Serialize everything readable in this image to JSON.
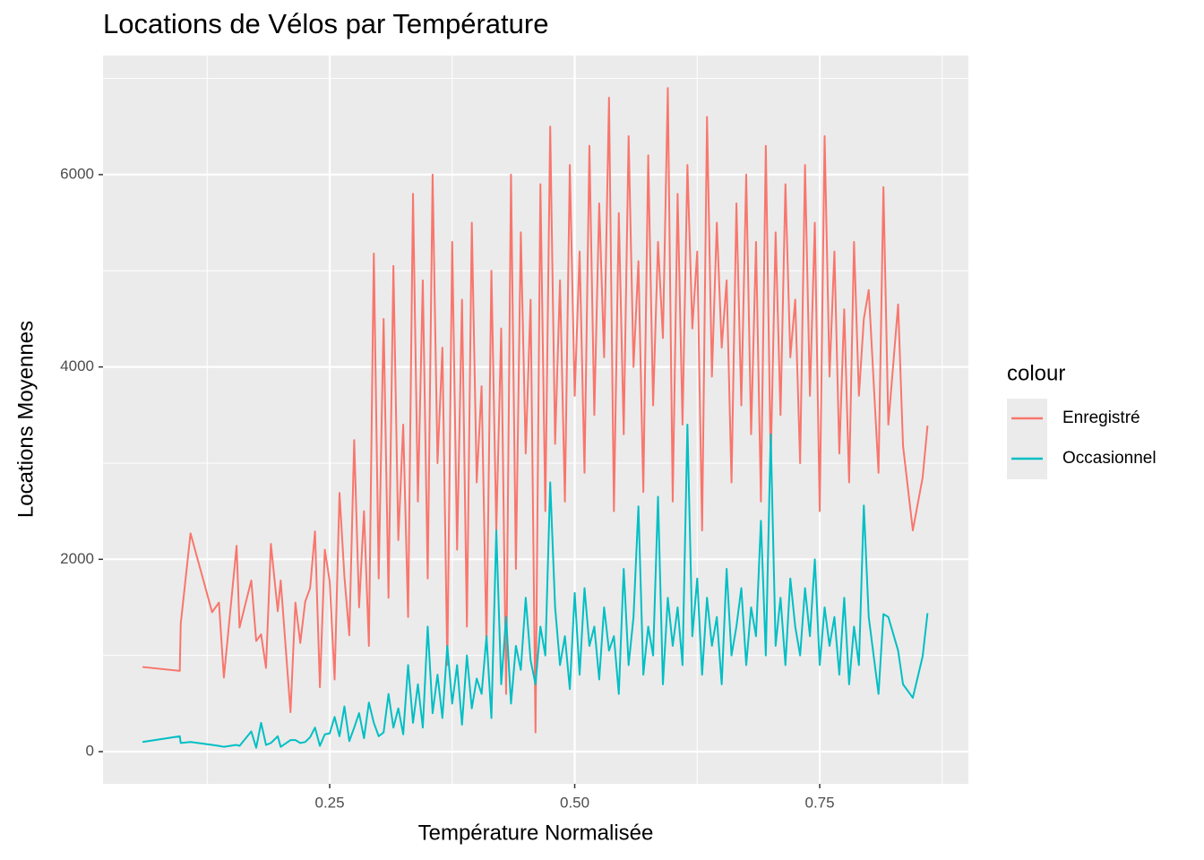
{
  "chart_data": {
    "type": "line",
    "title": "Locations de Vélos par Température",
    "x_label": "Température Normalisée",
    "y_label": "Locations Moyennes",
    "legend_title": "colour",
    "legend_position": "right",
    "grid": true,
    "xlim": [
      0.0187,
      0.9017
    ],
    "xticks": [
      {
        "value": 0.25,
        "label": "0.25"
      },
      {
        "value": 0.5,
        "label": "0.50"
      },
      {
        "value": 0.75,
        "label": "0.75"
      }
    ],
    "ylim": [
      -335,
      7238
    ],
    "yticks": [
      0,
      2000,
      4000,
      6000
    ],
    "x": [
      0.059,
      0.097,
      0.098,
      0.108,
      0.13,
      0.137,
      0.142,
      0.155,
      0.158,
      0.17,
      0.175,
      0.18,
      0.185,
      0.19,
      0.197,
      0.2,
      0.21,
      0.215,
      0.22,
      0.225,
      0.23,
      0.235,
      0.24,
      0.245,
      0.25,
      0.255,
      0.26,
      0.265,
      0.27,
      0.275,
      0.28,
      0.285,
      0.29,
      0.295,
      0.3,
      0.305,
      0.31,
      0.315,
      0.32,
      0.325,
      0.33,
      0.335,
      0.34,
      0.345,
      0.35,
      0.355,
      0.36,
      0.365,
      0.37,
      0.375,
      0.38,
      0.385,
      0.39,
      0.395,
      0.4,
      0.405,
      0.41,
      0.415,
      0.42,
      0.425,
      0.43,
      0.435,
      0.44,
      0.445,
      0.45,
      0.455,
      0.46,
      0.465,
      0.47,
      0.475,
      0.48,
      0.485,
      0.49,
      0.495,
      0.5,
      0.505,
      0.51,
      0.515,
      0.52,
      0.525,
      0.53,
      0.535,
      0.54,
      0.545,
      0.55,
      0.555,
      0.56,
      0.565,
      0.57,
      0.575,
      0.58,
      0.585,
      0.59,
      0.595,
      0.6,
      0.605,
      0.61,
      0.615,
      0.62,
      0.625,
      0.63,
      0.635,
      0.64,
      0.645,
      0.65,
      0.655,
      0.66,
      0.665,
      0.67,
      0.675,
      0.68,
      0.685,
      0.69,
      0.695,
      0.7,
      0.705,
      0.71,
      0.715,
      0.72,
      0.725,
      0.73,
      0.735,
      0.74,
      0.745,
      0.75,
      0.755,
      0.76,
      0.765,
      0.77,
      0.775,
      0.78,
      0.785,
      0.79,
      0.795,
      0.8,
      0.81,
      0.815,
      0.82,
      0.83,
      0.835,
      0.845,
      0.855,
      0.86
    ],
    "series": [
      {
        "name": "Enregistré",
        "color": "#F8766D",
        "values": [
          880,
          840,
          1330,
          2270,
          1450,
          1550,
          770,
          2140,
          1290,
          1780,
          1150,
          1220,
          870,
          2160,
          1460,
          1780,
          410,
          1550,
          1130,
          1560,
          1700,
          2290,
          670,
          2100,
          1770,
          750,
          2690,
          1820,
          1210,
          3240,
          1500,
          2500,
          1100,
          5180,
          1800,
          4500,
          1600,
          5050,
          2200,
          3400,
          1400,
          5800,
          2600,
          4900,
          1800,
          6000,
          3000,
          4200,
          900,
          5300,
          2100,
          4700,
          1300,
          5500,
          2800,
          3800,
          1100,
          5000,
          2300,
          4400,
          600,
          6000,
          1900,
          5400,
          3100,
          4700,
          200,
          5900,
          2500,
          6500,
          3200,
          4900,
          2600,
          6100,
          3700,
          5200,
          2900,
          6300,
          3500,
          5700,
          4100,
          6800,
          2500,
          5600,
          3300,
          6400,
          4000,
          5100,
          2700,
          6200,
          3600,
          5300,
          4300,
          6900,
          2600,
          5800,
          3400,
          6100,
          4400,
          5200,
          2300,
          6600,
          3900,
          5500,
          4200,
          4900,
          2800,
          5700,
          3600,
          6000,
          3300,
          5300,
          2600,
          6300,
          3000,
          5400,
          3500,
          5900,
          4100,
          4700,
          3000,
          6100,
          3700,
          5500,
          2500,
          6400,
          3900,
          5200,
          3100,
          4600,
          2800,
          5300,
          3700,
          4500,
          4800,
          2900,
          5870,
          3400,
          4650,
          3180,
          2300,
          2850,
          3390
        ]
      },
      {
        "name": "Occasionnel",
        "color": "#00BFC4",
        "values": [
          100,
          160,
          90,
          100,
          70,
          60,
          50,
          70,
          60,
          210,
          40,
          300,
          70,
          90,
          160,
          50,
          120,
          120,
          90,
          100,
          150,
          250,
          60,
          180,
          190,
          360,
          160,
          470,
          110,
          250,
          400,
          140,
          510,
          300,
          160,
          200,
          600,
          250,
          450,
          180,
          900,
          300,
          700,
          250,
          1300,
          400,
          800,
          350,
          1100,
          500,
          900,
          280,
          1000,
          450,
          760,
          600,
          1200,
          350,
          2300,
          700,
          1400,
          500,
          1100,
          850,
          1600,
          950,
          700,
          1300,
          1000,
          2800,
          1500,
          900,
          1200,
          650,
          1650,
          800,
          1700,
          1100,
          1300,
          750,
          1500,
          1050,
          1200,
          600,
          1900,
          900,
          1400,
          2550,
          800,
          1300,
          1000,
          2650,
          700,
          1600,
          1100,
          1500,
          900,
          3400,
          1200,
          1800,
          800,
          1600,
          1100,
          1400,
          700,
          1900,
          1000,
          1300,
          1700,
          900,
          1500,
          1200,
          2400,
          1000,
          3300,
          1100,
          1600,
          900,
          1800,
          1300,
          1000,
          1700,
          1200,
          2000,
          900,
          1500,
          1100,
          1400,
          800,
          1600,
          700,
          1300,
          900,
          2560,
          1400,
          600,
          1430,
          1400,
          1050,
          700,
          560,
          990,
          1440
        ]
      }
    ]
  }
}
